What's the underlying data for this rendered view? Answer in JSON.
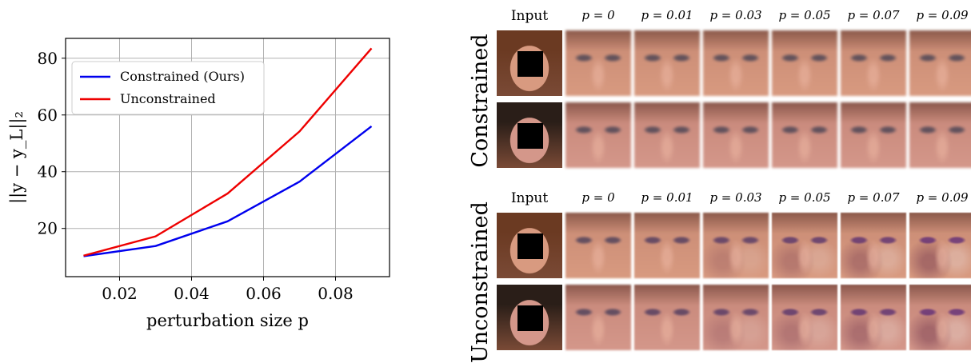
{
  "chart_data": {
    "type": "line",
    "xlabel": "perturbation size p",
    "ylabel": "||y − y_L||₂",
    "xlim": [
      0.005,
      0.095
    ],
    "ylim": [
      3,
      87
    ],
    "xticks": [
      "0.02",
      "0.04",
      "0.06",
      "0.08"
    ],
    "yticks": [
      "20",
      "40",
      "60",
      "80"
    ],
    "grid": true,
    "legend": "top-left",
    "x": [
      0.01,
      0.03,
      0.05,
      0.07,
      0.09
    ],
    "series": [
      {
        "name": "Constrained (Ours)",
        "color": "#0000ee",
        "values": [
          10.2,
          13.8,
          22.5,
          36.5,
          56.0
        ]
      },
      {
        "name": "Unconstrained",
        "color": "#ee0000",
        "values": [
          10.4,
          17.2,
          32.3,
          54.2,
          83.5
        ]
      }
    ]
  },
  "faces": {
    "sections": [
      {
        "label": "Constrained"
      },
      {
        "label": "Unconstrained"
      }
    ],
    "columns": [
      "Input",
      "p = 0",
      "p = 0.01",
      "p = 0.03",
      "p = 0.05",
      "p = 0.07",
      "p = 0.09"
    ],
    "row_tones": [
      {
        "hair": "#6b3a22",
        "skin": "#d89a80",
        "lip": "#c2405a",
        "bg": "#c88a74"
      },
      {
        "hair": "#2a1e18",
        "skin": "#d4978a",
        "lip": "#b84a48",
        "bg": "#c68678"
      }
    ]
  }
}
